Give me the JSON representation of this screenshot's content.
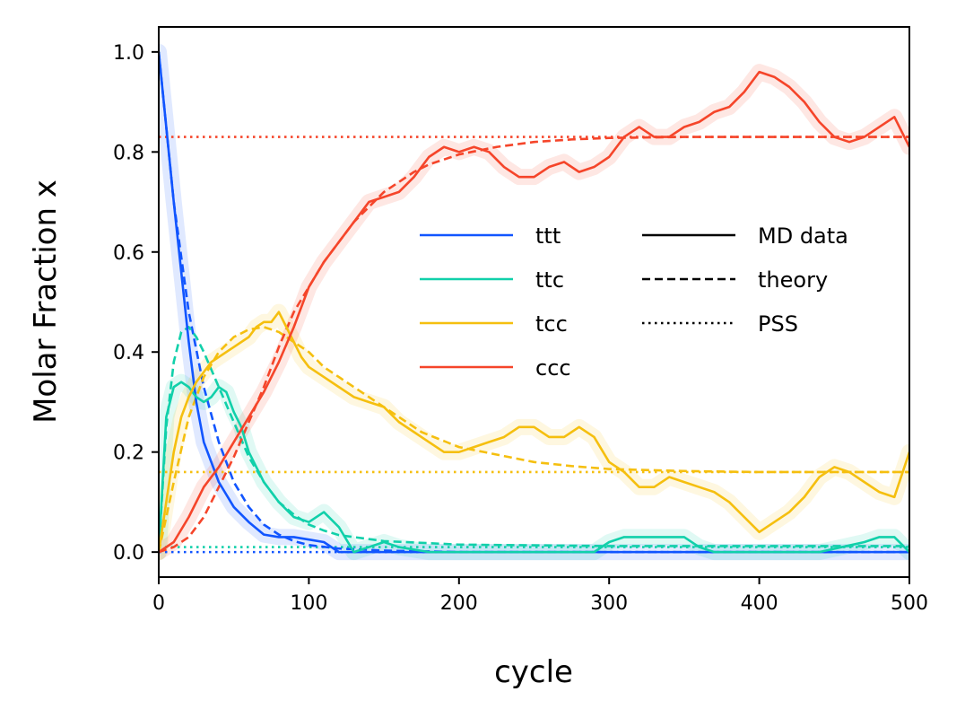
{
  "chart_data": {
    "type": "line",
    "xlabel": "cycle",
    "ylabel": "Molar Fraction x",
    "xlim": [
      0,
      500
    ],
    "ylim": [
      -0.05,
      1.05
    ],
    "xticks": [
      0,
      100,
      200,
      300,
      400,
      500
    ],
    "yticks": [
      0.0,
      0.2,
      0.4,
      0.6,
      0.8,
      1.0
    ],
    "xtick_labels": [
      "0",
      "100",
      "200",
      "300",
      "400",
      "500"
    ],
    "ytick_labels": [
      "0.0",
      "0.2",
      "0.4",
      "0.6",
      "0.8",
      "1.0"
    ],
    "grid": false,
    "legend_position": "center-right",
    "colors": {
      "ttt": "#1155ff",
      "ttc": "#11d0aa",
      "tcc": "#f5bf0f",
      "ccc": "#f5452a"
    },
    "legend": {
      "species": [
        "ttt",
        "ttc",
        "tcc",
        "ccc"
      ],
      "styles": [
        {
          "label": "MD data",
          "dash": "solid"
        },
        {
          "label": "theory",
          "dash": "dashed"
        },
        {
          "label": "PSS",
          "dash": "dotted"
        }
      ]
    },
    "series": [
      {
        "name": "ttt",
        "kind": "MD data",
        "x": [
          0,
          5,
          10,
          15,
          20,
          25,
          30,
          40,
          50,
          60,
          70,
          80,
          90,
          100,
          110,
          120,
          150,
          200,
          300,
          400,
          500
        ],
        "y": [
          1.0,
          0.85,
          0.7,
          0.56,
          0.42,
          0.3,
          0.22,
          0.14,
          0.09,
          0.06,
          0.035,
          0.03,
          0.03,
          0.025,
          0.02,
          0.0,
          0.0,
          0.0,
          0.0,
          0.0,
          0.0
        ]
      },
      {
        "name": "ttt",
        "kind": "theory",
        "x": [
          0,
          10,
          20,
          30,
          40,
          50,
          60,
          70,
          80,
          90,
          100,
          120,
          150,
          200,
          300,
          400,
          500
        ],
        "y": [
          1.0,
          0.7,
          0.48,
          0.33,
          0.22,
          0.14,
          0.09,
          0.055,
          0.035,
          0.022,
          0.014,
          0.007,
          0.003,
          0.0,
          0.0,
          0.0,
          0.0
        ]
      },
      {
        "name": "ttt",
        "kind": "PSS",
        "x": [
          0,
          500
        ],
        "y": [
          0.0,
          0.0
        ]
      },
      {
        "name": "ttc",
        "kind": "MD data",
        "x": [
          0,
          5,
          10,
          15,
          20,
          25,
          30,
          35,
          40,
          45,
          50,
          55,
          60,
          65,
          70,
          80,
          90,
          100,
          110,
          120,
          130,
          140,
          150,
          160,
          180,
          200,
          250,
          290,
          300,
          310,
          330,
          350,
          360,
          370,
          400,
          440,
          455,
          470,
          480,
          490,
          500
        ],
        "y": [
          0.0,
          0.27,
          0.33,
          0.34,
          0.33,
          0.31,
          0.3,
          0.31,
          0.33,
          0.32,
          0.28,
          0.25,
          0.2,
          0.17,
          0.14,
          0.1,
          0.07,
          0.06,
          0.08,
          0.05,
          0.0,
          0.01,
          0.02,
          0.01,
          0.0,
          0.0,
          0.0,
          0.0,
          0.02,
          0.03,
          0.03,
          0.03,
          0.01,
          0.0,
          0.0,
          0.0,
          0.01,
          0.02,
          0.03,
          0.03,
          0.0
        ]
      },
      {
        "name": "ttc",
        "kind": "theory",
        "x": [
          0,
          5,
          10,
          15,
          20,
          25,
          30,
          40,
          50,
          60,
          70,
          80,
          90,
          100,
          110,
          120,
          150,
          200,
          300,
          400,
          500
        ],
        "y": [
          0.0,
          0.25,
          0.38,
          0.44,
          0.45,
          0.43,
          0.4,
          0.33,
          0.26,
          0.19,
          0.14,
          0.1,
          0.075,
          0.055,
          0.043,
          0.034,
          0.022,
          0.015,
          0.012,
          0.012,
          0.012
        ]
      },
      {
        "name": "ttc",
        "kind": "PSS",
        "x": [
          0,
          500
        ],
        "y": [
          0.01,
          0.01
        ]
      },
      {
        "name": "tcc",
        "kind": "MD data",
        "x": [
          0,
          5,
          10,
          15,
          20,
          25,
          30,
          35,
          40,
          50,
          60,
          65,
          70,
          75,
          80,
          85,
          90,
          95,
          100,
          110,
          120,
          130,
          140,
          150,
          160,
          170,
          180,
          190,
          200,
          210,
          220,
          230,
          240,
          250,
          260,
          270,
          280,
          290,
          300,
          310,
          320,
          330,
          340,
          350,
          360,
          370,
          380,
          390,
          400,
          410,
          420,
          430,
          440,
          450,
          460,
          470,
          480,
          490,
          500
        ],
        "y": [
          0.0,
          0.1,
          0.2,
          0.27,
          0.31,
          0.34,
          0.36,
          0.38,
          0.39,
          0.41,
          0.43,
          0.45,
          0.46,
          0.46,
          0.48,
          0.45,
          0.42,
          0.39,
          0.37,
          0.35,
          0.33,
          0.31,
          0.3,
          0.29,
          0.26,
          0.24,
          0.22,
          0.2,
          0.2,
          0.21,
          0.22,
          0.23,
          0.25,
          0.25,
          0.23,
          0.23,
          0.25,
          0.23,
          0.18,
          0.16,
          0.13,
          0.13,
          0.15,
          0.14,
          0.13,
          0.12,
          0.1,
          0.07,
          0.04,
          0.06,
          0.08,
          0.11,
          0.15,
          0.17,
          0.16,
          0.14,
          0.12,
          0.11,
          0.2
        ]
      },
      {
        "name": "tcc",
        "kind": "theory",
        "x": [
          0,
          10,
          20,
          30,
          40,
          50,
          60,
          70,
          80,
          90,
          100,
          110,
          120,
          130,
          150,
          175,
          200,
          225,
          250,
          275,
          300,
          350,
          400,
          450,
          500
        ],
        "y": [
          0.0,
          0.14,
          0.27,
          0.35,
          0.4,
          0.43,
          0.445,
          0.45,
          0.44,
          0.42,
          0.4,
          0.37,
          0.35,
          0.33,
          0.29,
          0.24,
          0.21,
          0.195,
          0.18,
          0.172,
          0.166,
          0.162,
          0.16,
          0.16,
          0.16
        ]
      },
      {
        "name": "tcc",
        "kind": "PSS",
        "x": [
          0,
          500
        ],
        "y": [
          0.16,
          0.16
        ]
      },
      {
        "name": "ccc",
        "kind": "MD data",
        "x": [
          0,
          10,
          20,
          30,
          40,
          50,
          60,
          70,
          80,
          90,
          100,
          110,
          120,
          130,
          140,
          150,
          160,
          170,
          180,
          190,
          200,
          210,
          220,
          230,
          240,
          250,
          260,
          270,
          280,
          290,
          300,
          310,
          320,
          330,
          340,
          350,
          360,
          370,
          380,
          390,
          400,
          410,
          420,
          430,
          440,
          450,
          460,
          470,
          480,
          490,
          500
        ],
        "y": [
          0.0,
          0.02,
          0.07,
          0.13,
          0.17,
          0.22,
          0.27,
          0.32,
          0.38,
          0.45,
          0.53,
          0.58,
          0.62,
          0.66,
          0.7,
          0.71,
          0.72,
          0.75,
          0.79,
          0.81,
          0.8,
          0.81,
          0.8,
          0.77,
          0.75,
          0.75,
          0.77,
          0.78,
          0.76,
          0.77,
          0.79,
          0.83,
          0.85,
          0.83,
          0.83,
          0.85,
          0.86,
          0.88,
          0.89,
          0.92,
          0.96,
          0.95,
          0.93,
          0.9,
          0.86,
          0.83,
          0.82,
          0.83,
          0.85,
          0.87,
          0.81
        ]
      },
      {
        "name": "ccc",
        "kind": "theory",
        "x": [
          0,
          10,
          20,
          30,
          40,
          50,
          60,
          70,
          80,
          90,
          100,
          110,
          120,
          130,
          140,
          150,
          160,
          170,
          180,
          190,
          200,
          225,
          250,
          275,
          300,
          350,
          400,
          450,
          500
        ],
        "y": [
          0.0,
          0.01,
          0.03,
          0.07,
          0.13,
          0.19,
          0.26,
          0.33,
          0.41,
          0.48,
          0.53,
          0.58,
          0.62,
          0.66,
          0.69,
          0.72,
          0.74,
          0.76,
          0.775,
          0.785,
          0.795,
          0.81,
          0.82,
          0.825,
          0.828,
          0.83,
          0.83,
          0.83,
          0.83
        ]
      },
      {
        "name": "ccc",
        "kind": "PSS",
        "x": [
          0,
          500
        ],
        "y": [
          0.83,
          0.83
        ]
      }
    ]
  }
}
